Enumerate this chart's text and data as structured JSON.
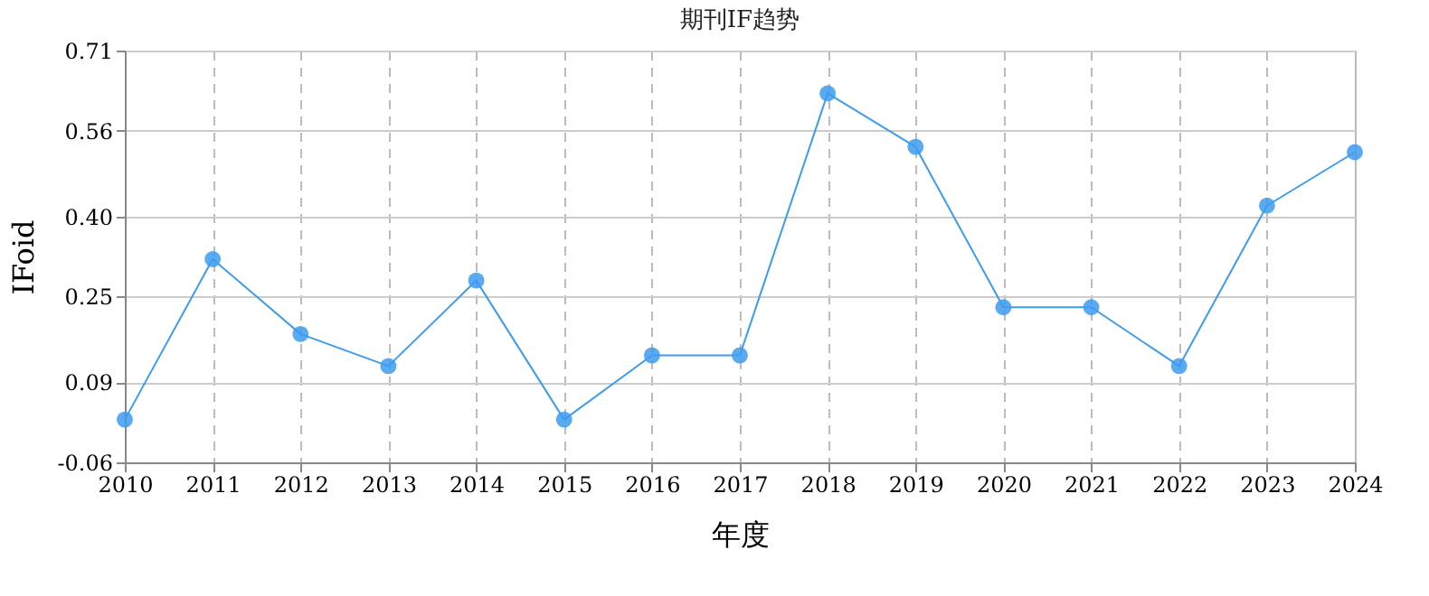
{
  "chart_data": {
    "type": "line",
    "title": "期刊IF趋势",
    "xlabel": "年度",
    "ylabel": "IFoid",
    "categories": [
      "2010",
      "2011",
      "2012",
      "2013",
      "2014",
      "2015",
      "2016",
      "2017",
      "2018",
      "2019",
      "2020",
      "2021",
      "2022",
      "2023",
      "2024"
    ],
    "series": [
      {
        "color": "#3d9bf0",
        "values": [
          0.02,
          0.32,
          0.18,
          0.12,
          0.28,
          0.02,
          0.14,
          0.14,
          0.63,
          0.53,
          0.23,
          0.23,
          0.12,
          0.42,
          0.52
        ]
      }
    ],
    "ylim": [
      -0.06,
      0.71
    ],
    "yticks": [
      {
        "value": -0.06,
        "label": "-0.06"
      },
      {
        "value": 0.09,
        "label": "0.09"
      },
      {
        "value": 0.25,
        "label": "0.25"
      },
      {
        "value": 0.4,
        "label": "0.40"
      },
      {
        "value": 0.56,
        "label": "0.56"
      },
      {
        "value": 0.71,
        "label": "0.71"
      }
    ],
    "grid": true,
    "marker": "circle"
  }
}
